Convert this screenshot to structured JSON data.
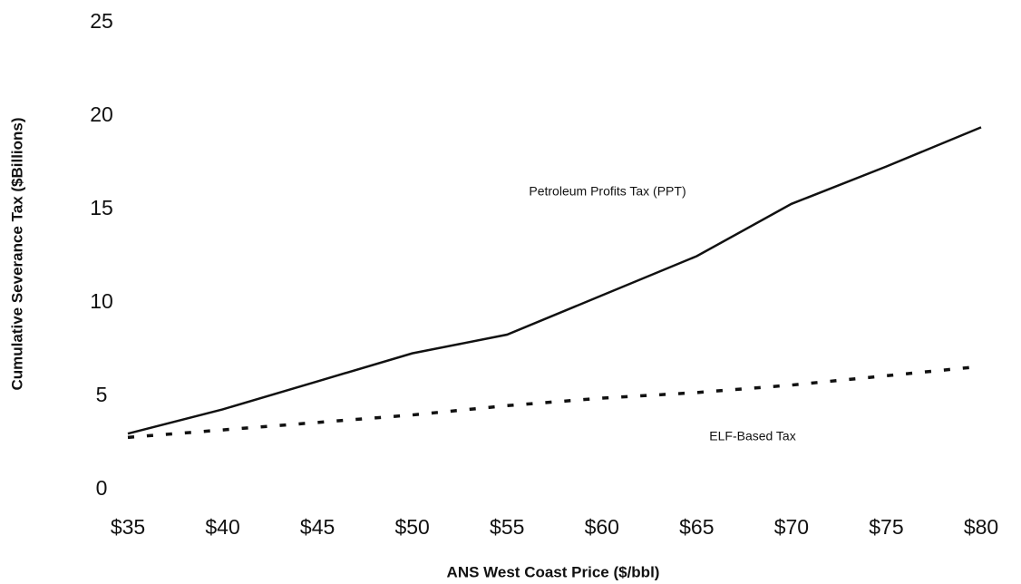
{
  "chart_data": {
    "type": "line",
    "x_label": "ANS West Coast Price ($/bbl)",
    "y_label": "Cumulative Severance Tax ($Billions)",
    "categories": [
      "$35",
      "$40",
      "$45",
      "$50",
      "$55",
      "$60",
      "$65",
      "$70",
      "$75",
      "$80"
    ],
    "series": [
      {
        "name": "Petroleum Profits Tax (PPT)",
        "color": "#111111",
        "style": "solid",
        "values": [
          3.0,
          4.3,
          5.8,
          7.3,
          8.3,
          10.4,
          12.5,
          15.3,
          17.3,
          19.4
        ]
      },
      {
        "name": "ELF-Based Tax",
        "color": "#111111",
        "style": "dotted",
        "values": [
          2.8,
          3.2,
          3.6,
          4.0,
          4.5,
          4.9,
          5.2,
          5.6,
          6.1,
          6.6
        ]
      }
    ],
    "ylim": [
      0,
      25
    ],
    "yticks": [
      0,
      5,
      10,
      15,
      20,
      25
    ],
    "grid": false
  }
}
